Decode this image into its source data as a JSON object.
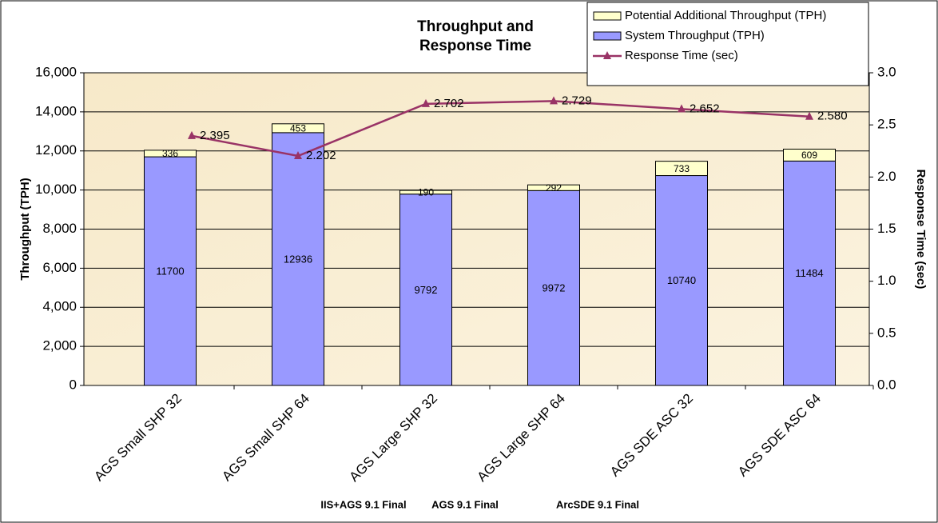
{
  "chart_data": {
    "type": "bar",
    "title": "Throughput and\nResponse Time",
    "categories": [
      "AGS Small SHP 32",
      "AGS Small SHP 64",
      "AGS Large SHP 32",
      "AGS Large SHP 64",
      "AGS SDE ASC 32",
      "AGS SDE ASC 64"
    ],
    "series": [
      {
        "name": "System Throughput (TPH)",
        "color": "#9999ff",
        "values": [
          11700,
          12936,
          9792,
          9972,
          10740,
          11484
        ]
      },
      {
        "name": "Potential Additional Throughput (TPH)",
        "color": "#ffffcc",
        "values": [
          336,
          453,
          190,
          292,
          733,
          609
        ]
      },
      {
        "name": "Response Time (sec)",
        "color": "#993366",
        "type": "line",
        "axis": "y2",
        "values": [
          2.395,
          2.202,
          2.702,
          2.729,
          2.652,
          2.58
        ],
        "value_labels": [
          "2.395",
          "2.202",
          "2.702",
          "2.729",
          "2.652",
          "2.580"
        ]
      }
    ],
    "stacked": true,
    "ylabel": "Throughput (TPH)",
    "y2label": "Response Time (sec)",
    "ylim": [
      0,
      16000
    ],
    "yticks": [
      0,
      {
        "value": 2000,
        "label": "2,000"
      },
      {
        "value": 4000,
        "label": "4,000"
      },
      {
        "value": 6000,
        "label": "6,000"
      },
      {
        "value": 8000,
        "label": "8,000"
      },
      {
        "value": 10000,
        "label": "10,000"
      },
      {
        "value": 12000,
        "label": "12,000"
      },
      {
        "value": 14000,
        "label": "14,000"
      },
      {
        "value": 16000,
        "label": "16,000"
      }
    ],
    "y2lim": [
      0,
      3
    ],
    "y2ticks": [
      {
        "value": 0,
        "label": "0.0"
      },
      0.5,
      {
        "value": 1,
        "label": "1.0"
      },
      1.5,
      {
        "value": 2,
        "label": "2.0"
      },
      2.5,
      {
        "value": 3,
        "label": "3.0"
      }
    ],
    "grid": true,
    "legend": "top-right",
    "annotations": [
      "IIS+AGS 9.1 Final",
      "AGS 9.1 Final",
      "ArcSDE 9.1 Final"
    ]
  }
}
